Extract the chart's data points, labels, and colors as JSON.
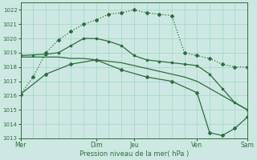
{
  "background_color": "#cde8e2",
  "grid_color": "#a0d4c8",
  "line_color": "#2d6e3e",
  "xlabel": "Pression niveau de la mer( hPa )",
  "xlim": [
    0,
    18
  ],
  "ylim": [
    1013,
    1022.5
  ],
  "yticks": [
    1013,
    1014,
    1015,
    1016,
    1017,
    1018,
    1019,
    1020,
    1021,
    1022
  ],
  "day_labels": [
    "Mer",
    "Dim",
    "Jeu",
    "Ven",
    "Sam"
  ],
  "day_positions": [
    0,
    6,
    9,
    14,
    18
  ],
  "s1_x": [
    0,
    1,
    2,
    3,
    4,
    5,
    6,
    7,
    8,
    9,
    10,
    11,
    12,
    13,
    14,
    15,
    16,
    17,
    18
  ],
  "s1_y": [
    1016.1,
    1017.3,
    1019.0,
    1019.9,
    1020.5,
    1021.0,
    1021.3,
    1021.7,
    1021.8,
    1022.0,
    1021.8,
    1021.7,
    1021.6,
    1019.0,
    1018.8,
    1018.6,
    1018.2,
    1018.0,
    1018.0
  ],
  "s2_x": [
    0,
    1,
    2,
    3,
    4,
    5,
    6,
    7,
    8,
    9,
    10,
    11,
    12,
    13,
    14,
    15,
    16,
    17,
    18
  ],
  "s2_y": [
    1018.8,
    1018.85,
    1018.9,
    1019.0,
    1019.5,
    1020.0,
    1020.0,
    1019.8,
    1019.5,
    1018.8,
    1018.5,
    1018.4,
    1018.3,
    1018.2,
    1018.1,
    1017.5,
    1016.5,
    1015.5,
    1015.0
  ],
  "s3_x": [
    0,
    1,
    2,
    3,
    4,
    5,
    6,
    7,
    8,
    9,
    10,
    11,
    12,
    13,
    14,
    15,
    16,
    17,
    18
  ],
  "s3_y": [
    1018.7,
    1018.7,
    1018.7,
    1018.7,
    1018.6,
    1018.6,
    1018.5,
    1018.4,
    1018.3,
    1018.1,
    1017.9,
    1017.7,
    1017.5,
    1017.3,
    1017.0,
    1016.5,
    1016.0,
    1015.5,
    1015.0
  ],
  "s4_x": [
    0,
    2,
    4,
    6,
    8,
    10,
    12,
    14,
    15,
    16,
    17,
    18
  ],
  "s4_y": [
    1016.1,
    1017.5,
    1018.2,
    1018.5,
    1017.8,
    1017.3,
    1017.0,
    1016.2,
    1013.4,
    1013.2,
    1013.7,
    1014.5
  ]
}
